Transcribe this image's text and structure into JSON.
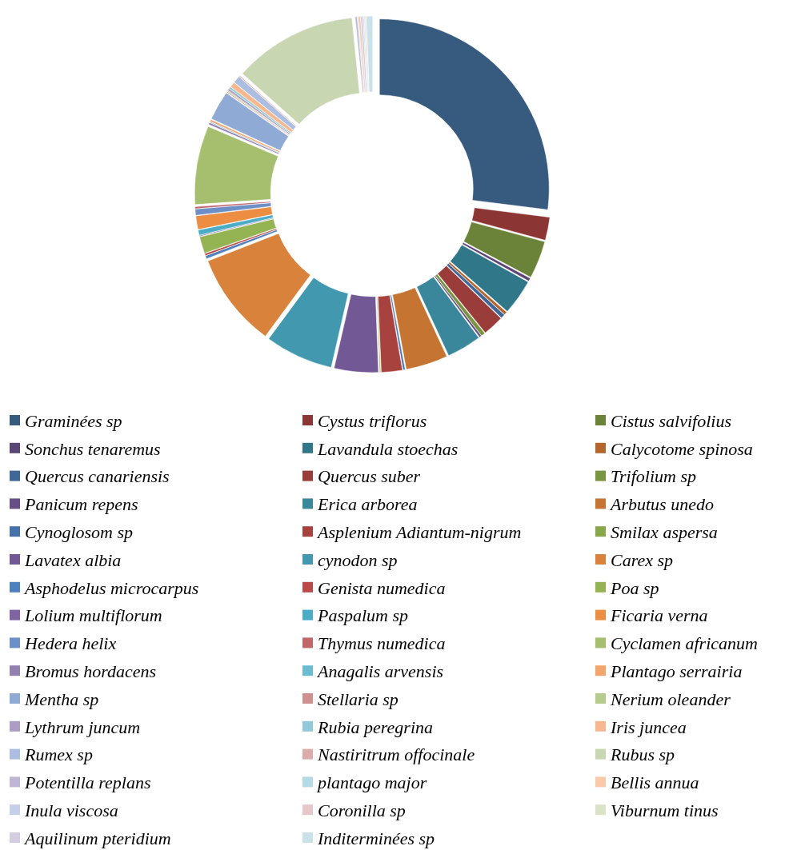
{
  "chart_data": {
    "type": "donut",
    "legend": "bottom",
    "categories": [
      "Graminées sp",
      "Cystus triflorus",
      "Cistus salvifolius",
      "Sonchus tenaremus",
      "Lavandula stoechas",
      "Calycotome spinosa",
      "Quercus canariensis",
      "Quercus suber",
      "Trifolium sp",
      "Panicum repens",
      "Erica arborea",
      "Arbutus unedo",
      "Cynoglosom sp",
      "Asplenium Adiantum-nigrum",
      "Smilax aspersa",
      "Lavatex albia",
      "cynodon sp",
      "Carex sp",
      "Asphodelus microcarpus",
      "Genista numedica",
      "Poa sp",
      "Lolium multiflorum",
      "Paspalum sp",
      "Ficaria verna",
      "Hedera helix",
      "Thymus numedica",
      "Cyclamen africanum",
      "Bromus hordacens",
      "Anagalis arvensis",
      "Plantago serrairia",
      "Mentha sp",
      "Stellaria sp",
      "Nerium oleander",
      "Lythrum juncum",
      "Rubia peregrina",
      "Iris juncea",
      "Rumex sp",
      "Nastiritrum offocinale",
      "Rubus sp",
      "Potentilla replans",
      "plantago major",
      "Bellis annua",
      "Inula viscosa",
      "Coronilla sp",
      "Viburnum tinus",
      "Aquilinum pteridium",
      "Inditerminées sp"
    ],
    "values": [
      27,
      2.2,
      3.6,
      0.3,
      3.4,
      0.3,
      0.4,
      2.0,
      0.4,
      0.2,
      3.3,
      4.0,
      0.2,
      2.0,
      0.1,
      4.2,
      6.5,
      9.0,
      0.3,
      0.2,
      1.6,
      0.1,
      0.5,
      1.3,
      0.6,
      0.2,
      7.5,
      0.2,
      0.1,
      0.2,
      2.8,
      0.1,
      0.1,
      0.2,
      0.2,
      0.5,
      0.7,
      0.1,
      11.8,
      0.2,
      0.1,
      0.2,
      0.2,
      0.1,
      0.1,
      0.1,
      0.6
    ],
    "colors": [
      "#375a7f",
      "#8b3634",
      "#6b8339",
      "#5b4476",
      "#31778a",
      "#b3652b",
      "#3f6797",
      "#9a3c3a",
      "#7a9541",
      "#674e87",
      "#3a879c",
      "#c57432",
      "#4672aa",
      "#a8423f",
      "#88a64a",
      "#735896",
      "#4198af",
      "#d9823b",
      "#4f81bd",
      "#b94a47",
      "#94b353",
      "#8064a2",
      "#4aacc6",
      "#ec8d42",
      "#6d8fc7",
      "#c0676a",
      "#a5bf6f",
      "#937fb0",
      "#6cbcd1",
      "#f4a56d",
      "#8faad4",
      "#cf9190",
      "#b5cc8e",
      "#ab9dc3",
      "#92c9d9",
      "#f7b890",
      "#abbde0",
      "#dbadaa",
      "#c9d6b2",
      "#c0b5d4",
      "#b3dae5",
      "#fac9aa",
      "#c5d0e8",
      "#e5c8c7",
      "#d9e3c7",
      "#d4cde2",
      "#c9e2ea"
    ]
  }
}
